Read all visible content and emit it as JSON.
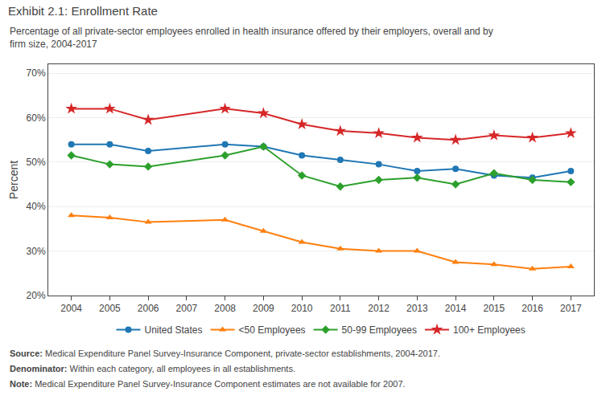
{
  "chart_data": {
    "type": "line",
    "title": "Exhibit 2.1: Enrollment Rate",
    "subtitle": "Percentage of all private-sector employees enrolled in health insurance offered by their employers, overall and by\nfirm size, 2004-2017",
    "y_label": "Percent",
    "x": [
      2004,
      2005,
      2006,
      2008,
      2009,
      2010,
      2011,
      2012,
      2013,
      2014,
      2015,
      2016,
      2017
    ],
    "series": [
      {
        "name": "United States",
        "marker": "circle",
        "values": [
          54.0,
          54.0,
          52.5,
          54.0,
          53.5,
          51.5,
          50.5,
          49.5,
          48.0,
          48.5,
          47.0,
          46.5,
          48.0
        ]
      },
      {
        "name": "<50 Employees",
        "marker": "triangle-up",
        "values": [
          38.0,
          37.5,
          36.5,
          37.0,
          34.5,
          32.0,
          30.5,
          30.0,
          30.0,
          27.5,
          27.0,
          26.0,
          26.5
        ]
      },
      {
        "name": "50-99 Employees",
        "marker": "diamond",
        "values": [
          51.5,
          49.5,
          49.0,
          51.5,
          53.5,
          47.0,
          44.5,
          46.0,
          46.5,
          45.0,
          47.5,
          46.0,
          45.5
        ]
      },
      {
        "name": "100+ Employees",
        "marker": "star",
        "values": [
          62.0,
          62.0,
          59.5,
          62.0,
          61.0,
          58.5,
          57.0,
          56.5,
          55.5,
          55.0,
          56.0,
          55.5,
          56.5
        ]
      }
    ],
    "xlim": [
      2003.4,
      2017.6
    ],
    "xticks": [
      2004,
      2005,
      2006,
      2007,
      2008,
      2009,
      2010,
      2011,
      2012,
      2013,
      2014,
      2015,
      2016,
      2017
    ],
    "ylim": [
      20,
      72
    ],
    "yticks": [
      {
        "value": 20,
        "label": "20%"
      },
      {
        "value": 30,
        "label": "30%"
      },
      {
        "value": 40,
        "label": "40%"
      },
      {
        "value": 50,
        "label": "50%"
      },
      {
        "value": 60,
        "label": "60%"
      },
      {
        "value": 70,
        "label": "70%"
      }
    ],
    "grid": true,
    "legend": "bottom",
    "annotations": [
      "Source: Medical Expenditure Panel Survey-Insurance Component, private-sector establishments, 2004-2017.",
      "Denominator: Within each category, all employees in all establishments.",
      "Note: Medical Expenditure Panel Survey-Insurance Component estimates are not available for 2007."
    ]
  }
}
